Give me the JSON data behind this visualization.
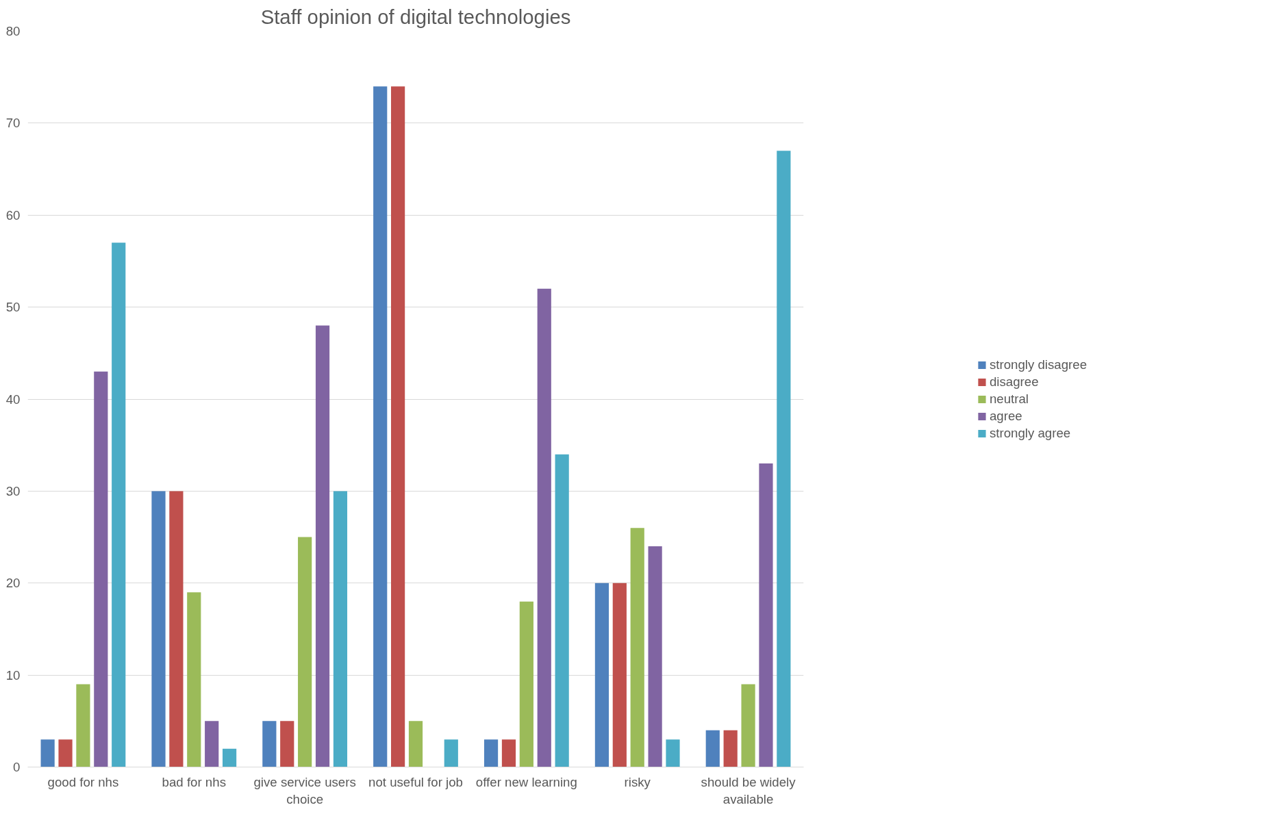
{
  "chart_data": {
    "type": "bar",
    "title": "Staff opinion of digital technologies",
    "categories": [
      "good for nhs",
      "bad for nhs",
      "give service users choice",
      "not useful for job",
      "offer new learning",
      "risky",
      "should be widely available"
    ],
    "series": [
      {
        "name": "strongly disagree",
        "color": "#4f81bd",
        "values": [
          3,
          30,
          5,
          74,
          3,
          20,
          4
        ]
      },
      {
        "name": "disagree",
        "color": "#c0504d",
        "values": [
          3,
          30,
          5,
          74,
          3,
          20,
          4
        ]
      },
      {
        "name": "neutral",
        "color": "#9bbb59",
        "values": [
          9,
          19,
          25,
          5,
          18,
          26,
          9
        ]
      },
      {
        "name": "agree",
        "color": "#8064a2",
        "values": [
          43,
          5,
          48,
          0,
          52,
          24,
          33
        ]
      },
      {
        "name": "strongly agree",
        "color": "#4bacc6",
        "values": [
          57,
          2,
          30,
          3,
          34,
          3,
          67
        ]
      }
    ],
    "ylim": [
      0,
      80
    ],
    "yticks": [
      0,
      10,
      20,
      30,
      40,
      50,
      60,
      70,
      80
    ],
    "grid": "y",
    "legend": "right"
  }
}
